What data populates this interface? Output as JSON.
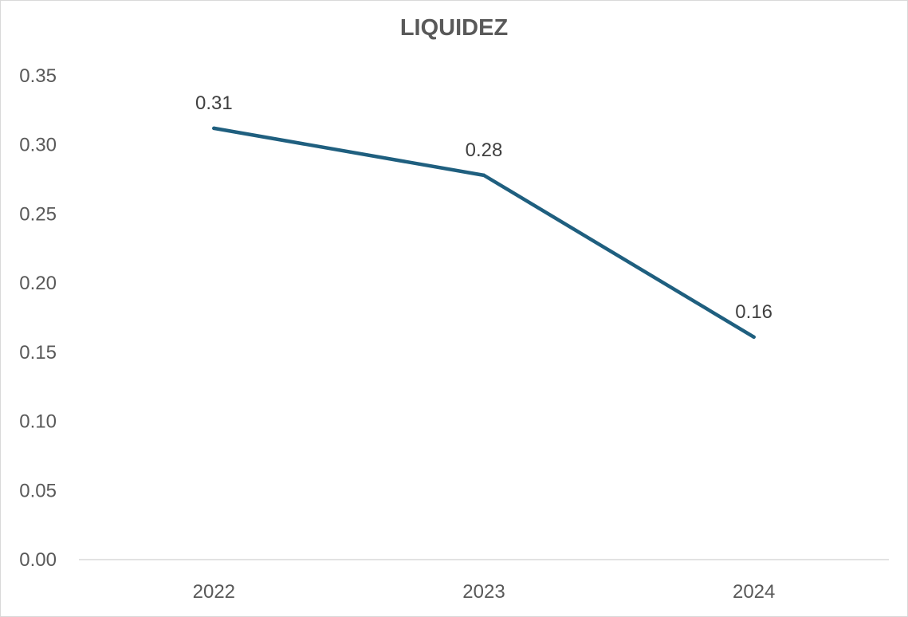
{
  "chart_data": {
    "type": "line",
    "title": "LIQUIDEZ",
    "categories": [
      "2022",
      "2023",
      "2024"
    ],
    "series": [
      {
        "values": [
          0.312,
          0.278,
          0.161
        ],
        "data_labels": [
          "0.31",
          "0.28",
          "0.16"
        ],
        "color": "#1f5f7f"
      }
    ],
    "xlabel": "",
    "ylabel": "",
    "ylim": [
      0,
      0.35
    ],
    "y_ticks": [
      "0.00",
      "0.05",
      "0.10",
      "0.15",
      "0.20",
      "0.25",
      "0.30",
      "0.35"
    ],
    "grid": false,
    "legend": "none",
    "axis_color": "#d9d9d9"
  }
}
